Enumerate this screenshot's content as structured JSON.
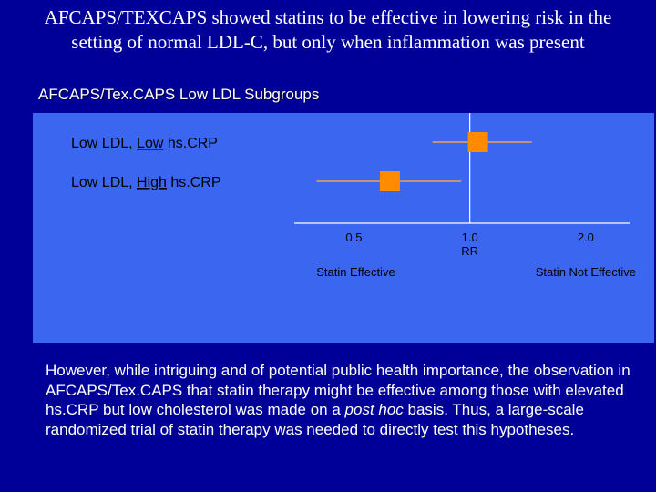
{
  "slide": {
    "title": "AFCAPS/TEXCAPS showed statins to be effective in lowering risk in the setting of normal LDL-C, but only when inflammation was present",
    "subtitle": "AFCAPS/Tex.CAPS Low LDL Subgroups"
  },
  "chart_data": {
    "type": "forest",
    "rows": [
      {
        "label_pre": "Low LDL, ",
        "label_em": "Low",
        "label_post": " hs.CRP",
        "rr": 1.05,
        "ci_low": 0.8,
        "ci_high": 1.45
      },
      {
        "label_pre": "Low LDL, ",
        "label_em": "High",
        "label_post": " hs.CRP",
        "rr": 0.62,
        "ci_low": 0.4,
        "ci_high": 0.95
      }
    ],
    "x_scale": "log",
    "xlim": [
      0.35,
      2.6
    ],
    "ticks": [
      {
        "value": 0.5,
        "label": "0.5"
      },
      {
        "value": 1.0,
        "label": "1.0"
      },
      {
        "value": 2.0,
        "label": "2.0"
      }
    ],
    "xlabel": "RR",
    "left_annotation": "Statin Effective",
    "right_annotation": "Statin Not Effective",
    "colors": {
      "panel": "#3b66f0",
      "marker": "#ff8c00",
      "ci_line": "#f0a050",
      "axis": "#ffffff",
      "text": "#000000"
    }
  },
  "body": {
    "text_before": "However, while intriguing and of potential public health importance, the observation in AFCAPS/Tex.CAPS that statin therapy might be effective among those with elevated hs.CRP but low cholesterol was made on a ",
    "text_italic": "post hoc",
    "text_after": " basis. Thus, a large-scale randomized trial of statin therapy was needed to directly test this hypotheses."
  }
}
